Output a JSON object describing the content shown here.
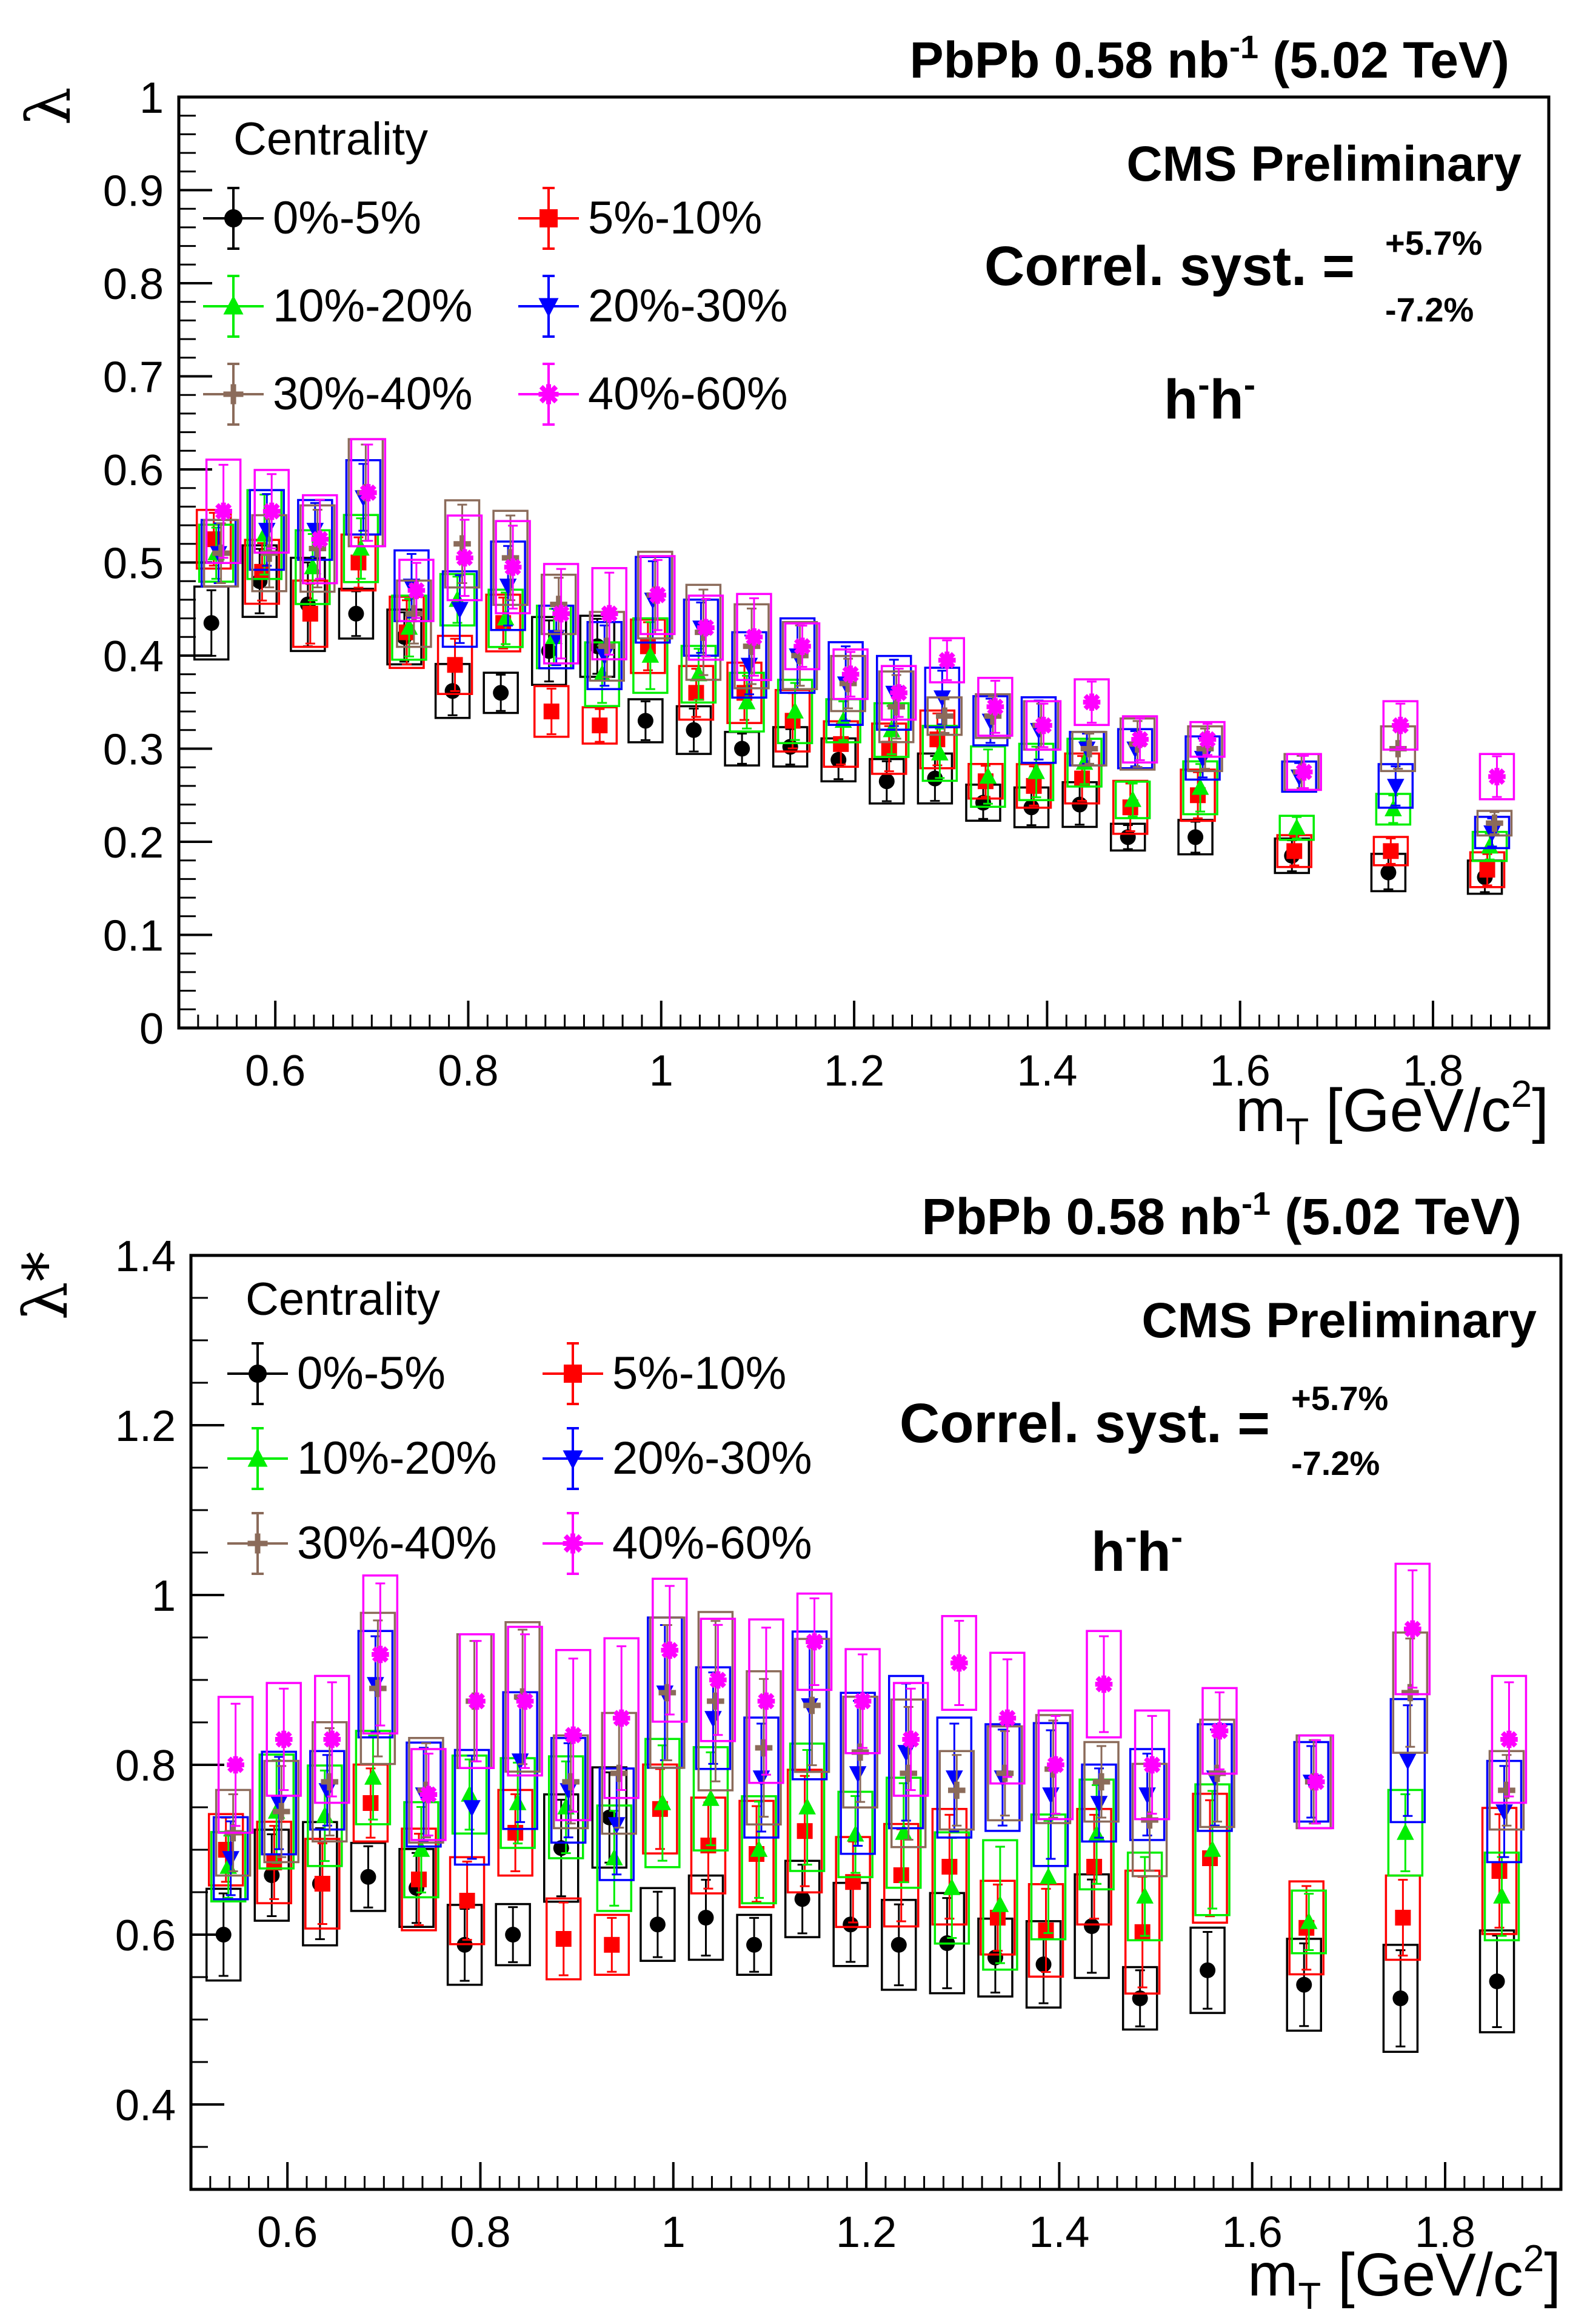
{
  "chart_data": [
    {
      "type": "scatter",
      "title": "PbPb 0.58 nb-1 (5.02 TeV)",
      "title_parts": {
        "main": "PbPb 0.58 nb",
        "sup": "-1",
        "tail": " (5.02 TeV)"
      },
      "experiment": "CMS Preliminary",
      "syst_label": "Correl. syst. =",
      "syst_up": "+5.7%",
      "syst_down": "-7.2%",
      "pair": {
        "h": "h",
        "sup": "-"
      },
      "ylabel": "λ",
      "xlabel": {
        "main": "m",
        "sub": "T",
        "unit1": " [GeV/c",
        "sup": "2",
        "unit2": "]"
      },
      "xlim": [
        0.5,
        1.92
      ],
      "ylim": [
        0,
        1
      ],
      "xticks": [
        "0.6",
        "0.8",
        "1",
        "1.2",
        "1.4",
        "1.6",
        "1.8"
      ],
      "yticks": [
        "0",
        "0.1",
        "0.2",
        "0.3",
        "0.4",
        "0.5",
        "0.6",
        "0.7",
        "0.8",
        "0.9",
        "1"
      ],
      "legend_title": "Centrality",
      "x": [
        0.54,
        0.59,
        0.64,
        0.69,
        0.74,
        0.79,
        0.84,
        0.89,
        0.94,
        0.99,
        1.04,
        1.09,
        1.14,
        1.19,
        1.24,
        1.29,
        1.34,
        1.39,
        1.44,
        1.49,
        1.56,
        1.66,
        1.76,
        1.86
      ],
      "series": [
        {
          "name": "0%-5%",
          "color": "#000000",
          "marker": "circle",
          "values": [
            0.435,
            0.48,
            0.455,
            0.445,
            0.42,
            0.362,
            0.36,
            0.405,
            0.41,
            0.33,
            0.32,
            0.3,
            0.302,
            0.288,
            0.265,
            0.268,
            0.242,
            0.237,
            0.24,
            0.205,
            0.205,
            0.185,
            0.167,
            0.162
          ]
        },
        {
          "name": "5%-10%",
          "color": "#ff0000",
          "marker": "square",
          "values": [
            0.525,
            0.49,
            0.445,
            0.5,
            0.425,
            0.39,
            0.435,
            0.34,
            0.325,
            0.41,
            0.36,
            0.36,
            0.33,
            0.305,
            0.3,
            0.31,
            0.265,
            0.26,
            0.268,
            0.237,
            0.25,
            0.19,
            0.19,
            0.17
          ]
        },
        {
          "name": "10%-20%",
          "color": "#00ee00",
          "marker": "triangle-up",
          "values": [
            0.51,
            0.53,
            0.495,
            0.515,
            0.43,
            0.46,
            0.44,
            0.42,
            0.38,
            0.4,
            0.38,
            0.35,
            0.34,
            0.33,
            0.32,
            0.295,
            0.27,
            0.275,
            0.285,
            0.245,
            0.258,
            0.215,
            0.235,
            0.195
          ]
        },
        {
          "name": "20%-30%",
          "color": "#0000ff",
          "marker": "triangle-down",
          "values": [
            0.51,
            0.535,
            0.535,
            0.57,
            0.475,
            0.45,
            0.475,
            0.42,
            0.4,
            0.46,
            0.43,
            0.39,
            0.4,
            0.37,
            0.36,
            0.355,
            0.33,
            0.32,
            0.3,
            0.3,
            0.29,
            0.27,
            0.26,
            0.21
          ]
        },
        {
          "name": "30%-40%",
          "color": "#8b6b5a",
          "marker": "plus",
          "values": [
            0.51,
            0.51,
            0.515,
            0.575,
            0.445,
            0.52,
            0.505,
            0.455,
            0.41,
            0.465,
            0.425,
            0.41,
            0.4,
            0.37,
            0.345,
            0.335,
            0.335,
            0.325,
            0.3,
            0.305,
            0.3,
            0.275,
            0.3,
            0.22
          ]
        },
        {
          "name": "40%-60%",
          "color": "#ff00ff",
          "marker": "star",
          "values": [
            0.555,
            0.555,
            0.525,
            0.575,
            0.47,
            0.505,
            0.495,
            0.445,
            0.445,
            0.465,
            0.43,
            0.42,
            0.41,
            0.38,
            0.36,
            0.395,
            0.345,
            0.325,
            0.35,
            0.31,
            0.31,
            0.275,
            0.325,
            0.27
          ]
        }
      ]
    },
    {
      "type": "scatter",
      "title": "PbPb 0.58 nb-1 (5.02 TeV)",
      "title_parts": {
        "main": "PbPb 0.58 nb",
        "sup": "-1",
        "tail": " (5.02 TeV)"
      },
      "experiment": "CMS Preliminary",
      "syst_label": "Correl. syst. =",
      "syst_up": "+5.7%",
      "syst_down": "-7.2%",
      "pair": {
        "h": "h",
        "sup": "-"
      },
      "ylabel": "λ*",
      "xlabel": {
        "main": "m",
        "sub": "T",
        "unit1": " [GeV/c",
        "sup": "2",
        "unit2": "]"
      },
      "xlim": [
        0.5,
        1.92
      ],
      "ylim": [
        0.3,
        1.4
      ],
      "xticks": [
        "0.6",
        "0.8",
        "1",
        "1.2",
        "1.4",
        "1.6",
        "1.8"
      ],
      "yticks": [
        "0.4",
        "0.6",
        "0.8",
        "1",
        "1.2",
        "1.4"
      ],
      "legend_title": "Centrality",
      "x": [
        0.54,
        0.59,
        0.64,
        0.69,
        0.74,
        0.79,
        0.84,
        0.89,
        0.94,
        0.99,
        1.04,
        1.09,
        1.14,
        1.19,
        1.24,
        1.29,
        1.34,
        1.39,
        1.44,
        1.49,
        1.56,
        1.66,
        1.76,
        1.86
      ],
      "series": [
        {
          "name": "0%-5%",
          "color": "#000000",
          "marker": "circle",
          "values": [
            0.6,
            0.67,
            0.66,
            0.668,
            0.655,
            0.588,
            0.6,
            0.702,
            0.738,
            0.612,
            0.62,
            0.588,
            0.642,
            0.612,
            0.588,
            0.59,
            0.573,
            0.565,
            0.61,
            0.525,
            0.558,
            0.541,
            0.525,
            0.545
          ]
        },
        {
          "name": "5%-10%",
          "color": "#ff0000",
          "marker": "square",
          "values": [
            0.7,
            0.685,
            0.66,
            0.755,
            0.665,
            0.64,
            0.72,
            0.595,
            0.588,
            0.748,
            0.705,
            0.695,
            0.722,
            0.662,
            0.67,
            0.68,
            0.62,
            0.605,
            0.68,
            0.603,
            0.69,
            0.608,
            0.62,
            0.675
          ]
        },
        {
          "name": "10%-20%",
          "color": "#00ee00",
          "marker": "triangle-up",
          "values": [
            0.68,
            0.745,
            0.74,
            0.785,
            0.7,
            0.765,
            0.755,
            0.75,
            0.69,
            0.755,
            0.76,
            0.7,
            0.75,
            0.718,
            0.72,
            0.655,
            0.635,
            0.668,
            0.718,
            0.645,
            0.7,
            0.615,
            0.72,
            0.645
          ]
        },
        {
          "name": "20%-30%",
          "color": "#0000ff",
          "marker": "triangle-down",
          "values": [
            0.69,
            0.755,
            0.77,
            0.895,
            0.765,
            0.75,
            0.805,
            0.77,
            0.73,
            0.885,
            0.855,
            0.785,
            0.87,
            0.79,
            0.815,
            0.785,
            0.785,
            0.765,
            0.755,
            0.765,
            0.785,
            0.78,
            0.805,
            0.745
          ]
        },
        {
          "name": "30%-40%",
          "color": "#8b6b5a",
          "marker": "plus",
          "values": [
            0.72,
            0.745,
            0.78,
            0.89,
            0.77,
            0.875,
            0.88,
            0.78,
            0.79,
            0.885,
            0.875,
            0.82,
            0.87,
            0.815,
            0.79,
            0.77,
            0.79,
            0.795,
            0.78,
            0.735,
            0.79,
            0.78,
            0.885,
            0.77
          ]
        },
        {
          "name": "40%-60%",
          "color": "#ff00ff",
          "marker": "star",
          "values": [
            0.8,
            0.83,
            0.83,
            0.93,
            0.765,
            0.875,
            0.875,
            0.835,
            0.855,
            0.935,
            0.9,
            0.875,
            0.945,
            0.875,
            0.83,
            0.92,
            0.855,
            0.8,
            0.895,
            0.8,
            0.84,
            0.78,
            0.96,
            0.83
          ]
        }
      ]
    }
  ]
}
